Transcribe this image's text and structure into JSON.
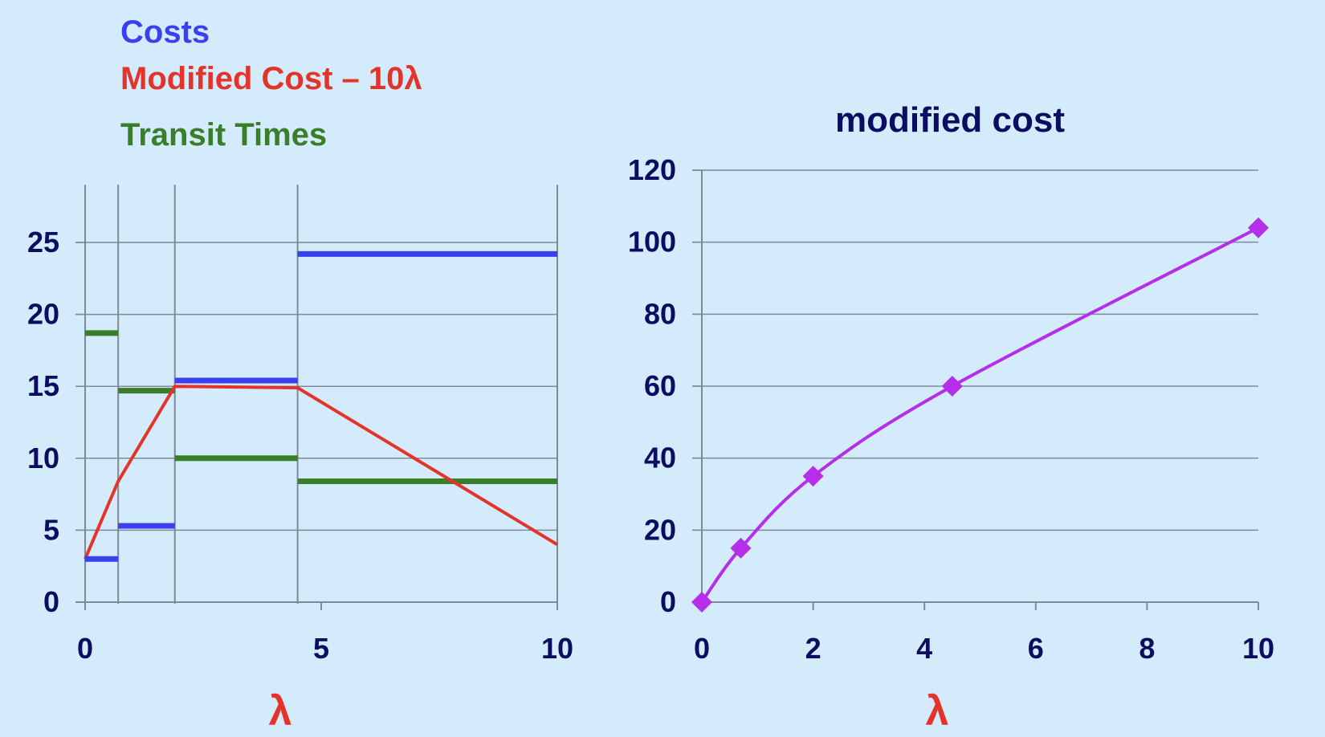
{
  "colors": {
    "background": "#d3ebfb",
    "costs": "#3a3ff0",
    "modified_cost": "#e4332a",
    "transit_times": "#3a7d2a",
    "right_series": "#b52eea",
    "axis_text": "#0b0e60",
    "lambda_label": "#e4332a",
    "gridline": "#7f8a96"
  },
  "legend": {
    "costs": "Costs",
    "modified_cost": "Modified Cost – 10λ",
    "transit_times": "Transit Times"
  },
  "x_labels": {
    "left": "λ",
    "right": "λ"
  },
  "chart_data": [
    {
      "type": "line",
      "title": "",
      "xlabel": "λ",
      "ylabel": "",
      "xlim": [
        0,
        10
      ],
      "ylim": [
        0,
        25
      ],
      "x_ticks": [
        0,
        5,
        10
      ],
      "y_ticks": [
        0,
        5,
        10,
        15,
        20,
        25
      ],
      "grid": true,
      "vertical_lines_x": [
        0,
        0.7,
        1.9,
        4.5,
        10
      ],
      "series": [
        {
          "name": "Costs",
          "style": "step",
          "segments": [
            {
              "x0": 0,
              "x1": 0.7,
              "y": 3
            },
            {
              "x0": 0.7,
              "x1": 1.9,
              "y": 5.3
            },
            {
              "x0": 1.9,
              "x1": 4.5,
              "y": 15.4
            },
            {
              "x0": 4.5,
              "x1": 10,
              "y": 24.2
            }
          ]
        },
        {
          "name": "Modified Cost – 10λ",
          "style": "polyline",
          "x": [
            0,
            0.7,
            1.9,
            4.5,
            10
          ],
          "y": [
            3,
            8.4,
            15,
            14.9,
            4
          ]
        },
        {
          "name": "Transit Times",
          "style": "step",
          "segments": [
            {
              "x0": 0,
              "x1": 0.7,
              "y": 18.7
            },
            {
              "x0": 0.7,
              "x1": 1.9,
              "y": 14.7
            },
            {
              "x0": 1.9,
              "x1": 4.5,
              "y": 10
            },
            {
              "x0": 4.5,
              "x1": 10,
              "y": 8.4
            }
          ]
        }
      ]
    },
    {
      "type": "line",
      "title": "modified cost",
      "xlabel": "λ",
      "ylabel": "",
      "xlim": [
        0,
        10
      ],
      "ylim": [
        0,
        120
      ],
      "x_ticks": [
        0,
        2,
        4,
        6,
        8,
        10
      ],
      "y_ticks": [
        0,
        20,
        40,
        60,
        80,
        100,
        120
      ],
      "grid": true,
      "series": [
        {
          "name": "",
          "marker": "diamond",
          "x": [
            0,
            0.7,
            2,
            4.5,
            10
          ],
          "y": [
            0,
            15,
            35,
            60,
            104
          ]
        }
      ]
    }
  ]
}
